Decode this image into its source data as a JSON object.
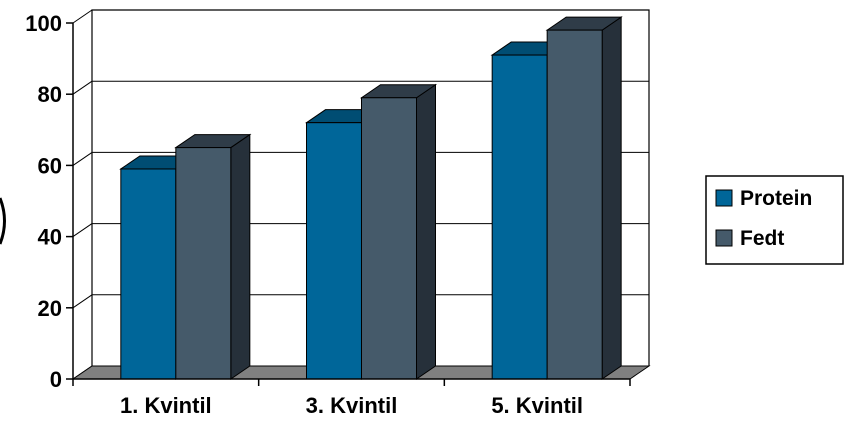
{
  "chart_data": {
    "type": "bar",
    "categories": [
      "1. Kvintil",
      "3. Kvintil",
      "5. Kvintil"
    ],
    "series": [
      {
        "name": "Protein",
        "values": [
          59,
          72,
          91
        ],
        "color": "#006699"
      },
      {
        "name": "Fedt",
        "values": [
          65,
          79,
          98
        ],
        "color": "#455A6A"
      }
    ],
    "yticks": [
      "0",
      "20",
      "40",
      "60",
      "80",
      "100"
    ],
    "ylim": [
      0,
      100
    ],
    "grid": true,
    "legend": "right",
    "floor_color": "#808080",
    "side_shade": "#26303A",
    "top_shade": "#2F3C48"
  }
}
